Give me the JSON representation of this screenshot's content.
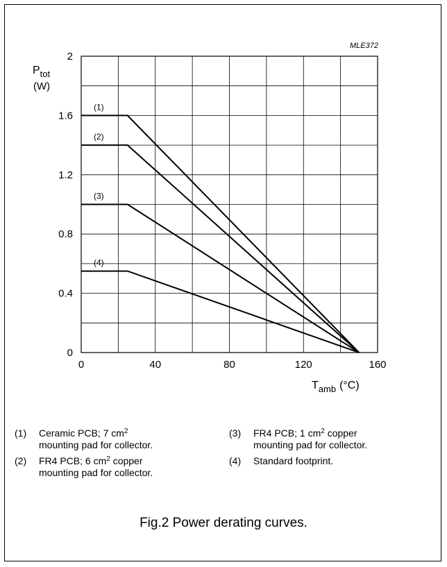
{
  "chart_data": {
    "type": "line",
    "code": "MLE372",
    "ylabel": {
      "main": "P",
      "sub": "tot",
      "unit": "(W)"
    },
    "xlabel": {
      "main": "T",
      "sub": "amb",
      "unit": "(°C)"
    },
    "xlim": [
      0,
      160
    ],
    "ylim": [
      0,
      2
    ],
    "x_ticks": [
      0,
      40,
      80,
      120,
      160
    ],
    "x_tick_labels": [
      "0",
      "40",
      "80",
      "120",
      "160"
    ],
    "y_ticks": [
      0,
      0.4,
      0.8,
      1.2,
      1.6,
      2
    ],
    "y_tick_labels": [
      "0",
      "0.4",
      "0.8",
      "1.2",
      "1.6",
      "2"
    ],
    "grid": true,
    "series": [
      {
        "name": "(1)",
        "x": [
          0,
          25,
          150
        ],
        "y": [
          1.6,
          1.6,
          0
        ]
      },
      {
        "name": "(2)",
        "x": [
          0,
          25,
          150
        ],
        "y": [
          1.4,
          1.4,
          0
        ]
      },
      {
        "name": "(3)",
        "x": [
          0,
          25,
          150
        ],
        "y": [
          1.0,
          1.0,
          0
        ]
      },
      {
        "name": "(4)",
        "x": [
          0,
          25,
          150
        ],
        "y": [
          0.55,
          0.55,
          0
        ]
      }
    ]
  },
  "legend": [
    {
      "num": "(1)",
      "pre": "Ceramic PCB; 7 cm",
      "sup": "2",
      "post": "",
      "line2": "mounting pad for collector."
    },
    {
      "num": "(2)",
      "pre": "FR4 PCB; 6 cm",
      "sup": "2",
      "post": " copper",
      "line2": "mounting pad for collector."
    },
    {
      "num": "(3)",
      "pre": "FR4 PCB; 1 cm",
      "sup": "2",
      "post": " copper",
      "line2": "mounting pad for collector."
    },
    {
      "num": "(4)",
      "pre": "Standard footprint.",
      "sup": "",
      "post": "",
      "line2": ""
    }
  ],
  "caption": "Fig.2  Power derating curves."
}
